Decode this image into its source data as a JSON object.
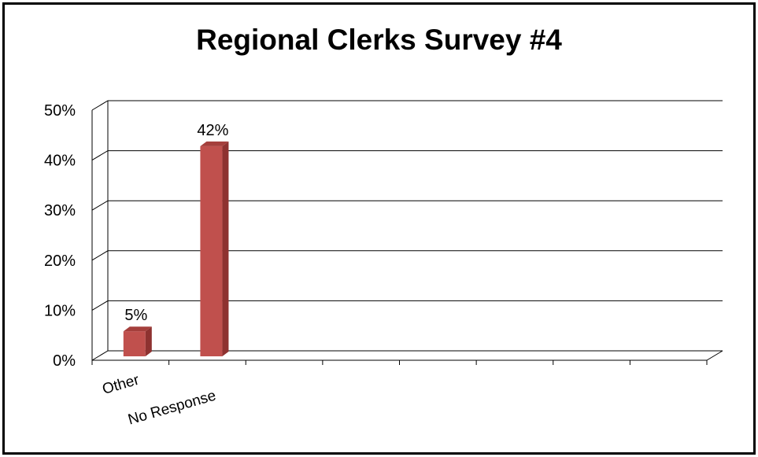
{
  "chart_data": {
    "type": "bar",
    "title": "Regional Clerks Survey #4",
    "categories": [
      "Other",
      "No Response"
    ],
    "values": [
      0.05,
      0.42
    ],
    "data_labels": [
      "5%",
      "42%"
    ],
    "ylim": [
      0,
      0.5
    ],
    "yticks": [
      "0%",
      "10%",
      "20%",
      "30%",
      "40%",
      "50%"
    ],
    "grid": true,
    "legend": "none",
    "three_d": true,
    "category_slots": 8,
    "bar_color": "#C0504D",
    "bar_side_color": "#8E3230",
    "bar_top_color": "#A53F3C"
  }
}
